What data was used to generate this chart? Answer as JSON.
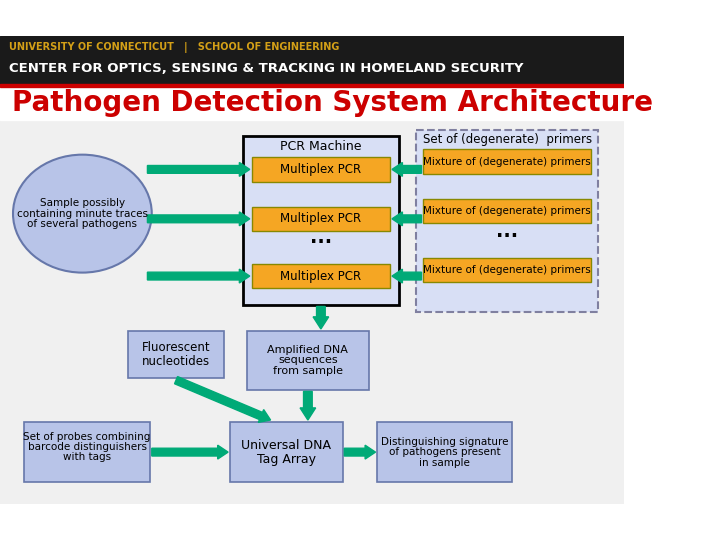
{
  "title": "Pathogen Detection System Architecture",
  "header_line1": "UNIVERSITY OF CONNECTICUT   |   SCHOOL OF ENGINEERING",
  "header_line2": "CENTER FOR OPTICS, SENSING & TRACKING IN HOMELAND SECURITY",
  "bg_color": "#ffffff",
  "header_bg": "#1a1a1a",
  "header_line1_color": "#d4a017",
  "header_line2_color": "#ffffff",
  "title_color": "#cc0000",
  "title_bg": "#ffffff",
  "box_blue_light": "#b8c4e8",
  "box_orange": "#f5a623",
  "box_blue_mid": "#8fa8d8",
  "arrow_color": "#00aa77",
  "ellipse_color": "#b8c4e8",
  "dashed_box_color": "#b8c4e8",
  "text_dark": "#000000",
  "pcr_border": "#000000"
}
